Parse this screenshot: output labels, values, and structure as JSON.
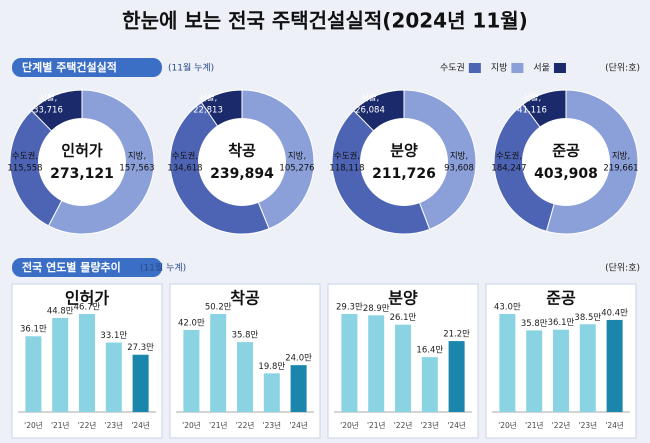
{
  "title": "한눈에 보는 전국 주택건설실적(2024년 11월)",
  "sections": [
    {
      "title": "단계별 주택건설실적",
      "note": "(11월 누계)",
      "unit": "(단위:호)",
      "legend": [
        {
          "name": "수도권",
          "color": "#4d63b3"
        },
        {
          "name": "지방",
          "color": "#8b9fd9"
        },
        {
          "name": "서울",
          "color": "#1b2a6b"
        }
      ]
    },
    {
      "title": "전국 연도별 물량추이",
      "note": "(11월 누계)",
      "unit": "(단위:호)"
    }
  ],
  "chart_data": [
    {
      "type": "donut",
      "title": "인허가",
      "total": {
        "value": 273121,
        "label": "273,121"
      },
      "categories": [
        "서울,",
        "수도권,",
        "지방,"
      ],
      "values": [
        33716,
        115558,
        157563
      ],
      "value_labels": [
        "33,716",
        "115,558",
        "157,563"
      ],
      "colors": [
        "#1b2a6b",
        "#4d63b3",
        "#8b9fd9"
      ]
    },
    {
      "type": "donut",
      "title": "착공",
      "total": {
        "value": 239894,
        "label": "239,894"
      },
      "categories": [
        "서울,",
        "수도권,",
        "지방,"
      ],
      "values": [
        22813,
        134618,
        105276
      ],
      "value_labels": [
        "22,813",
        "134,618",
        "105,276"
      ],
      "colors": [
        "#1b2a6b",
        "#4d63b3",
        "#8b9fd9"
      ]
    },
    {
      "type": "donut",
      "title": "분양",
      "total": {
        "value": 211726,
        "label": "211,726"
      },
      "categories": [
        "서울,",
        "수도권,",
        "지방,"
      ],
      "values": [
        26084,
        118118,
        93608
      ],
      "value_labels": [
        "26,084",
        "118,118",
        "93,608"
      ],
      "colors": [
        "#1b2a6b",
        "#4d63b3",
        "#8b9fd9"
      ]
    },
    {
      "type": "donut",
      "title": "준공",
      "total": {
        "value": 403908,
        "label": "403,908"
      },
      "categories": [
        "서울,",
        "수도권,",
        "지방,"
      ],
      "values": [
        41116,
        184247,
        219661
      ],
      "value_labels": [
        "41,116",
        "184,247",
        "219,661"
      ],
      "colors": [
        "#1b2a6b",
        "#4d63b3",
        "#8b9fd9"
      ]
    },
    {
      "type": "bar",
      "title": "인허가",
      "categories": [
        "'20년",
        "'21년",
        "'22년",
        "'23년",
        "'24년"
      ],
      "values": [
        36.1,
        44.8,
        46.7,
        33.1,
        27.3
      ],
      "value_labels": [
        "36.1만",
        "44.8만",
        "46.7만",
        "33.1만",
        "27.3만"
      ],
      "colors": [
        "#8ad3e2",
        "#8ad3e2",
        "#8ad3e2",
        "#8ad3e2",
        "#1a86ac"
      ]
    },
    {
      "type": "bar",
      "title": "착공",
      "categories": [
        "'20년",
        "'21년",
        "'22년",
        "'23년",
        "'24년"
      ],
      "values": [
        42.0,
        50.2,
        35.8,
        19.8,
        24.0
      ],
      "value_labels": [
        "42.0만",
        "50.2만",
        "35.8만",
        "19.8만",
        "24.0만"
      ],
      "colors": [
        "#8ad3e2",
        "#8ad3e2",
        "#8ad3e2",
        "#8ad3e2",
        "#1a86ac"
      ]
    },
    {
      "type": "bar",
      "title": "분양",
      "categories": [
        "'20년",
        "'21년",
        "'22년",
        "'23년",
        "'24년"
      ],
      "values": [
        29.3,
        28.9,
        26.1,
        16.4,
        21.2
      ],
      "value_labels": [
        "29.3만",
        "28.9만",
        "26.1만",
        "16.4만",
        "21.2만"
      ],
      "colors": [
        "#8ad3e2",
        "#8ad3e2",
        "#8ad3e2",
        "#8ad3e2",
        "#1a86ac"
      ]
    },
    {
      "type": "bar",
      "title": "준공",
      "categories": [
        "'20년",
        "'21년",
        "'22년",
        "'23년",
        "'24년"
      ],
      "values": [
        43.0,
        35.8,
        36.1,
        38.5,
        40.4
      ],
      "value_labels": [
        "43.0만",
        "35.8만",
        "36.1만",
        "38.5만",
        "40.4만"
      ],
      "colors": [
        "#8ad3e2",
        "#8ad3e2",
        "#8ad3e2",
        "#8ad3e2",
        "#1a86ac"
      ]
    }
  ]
}
